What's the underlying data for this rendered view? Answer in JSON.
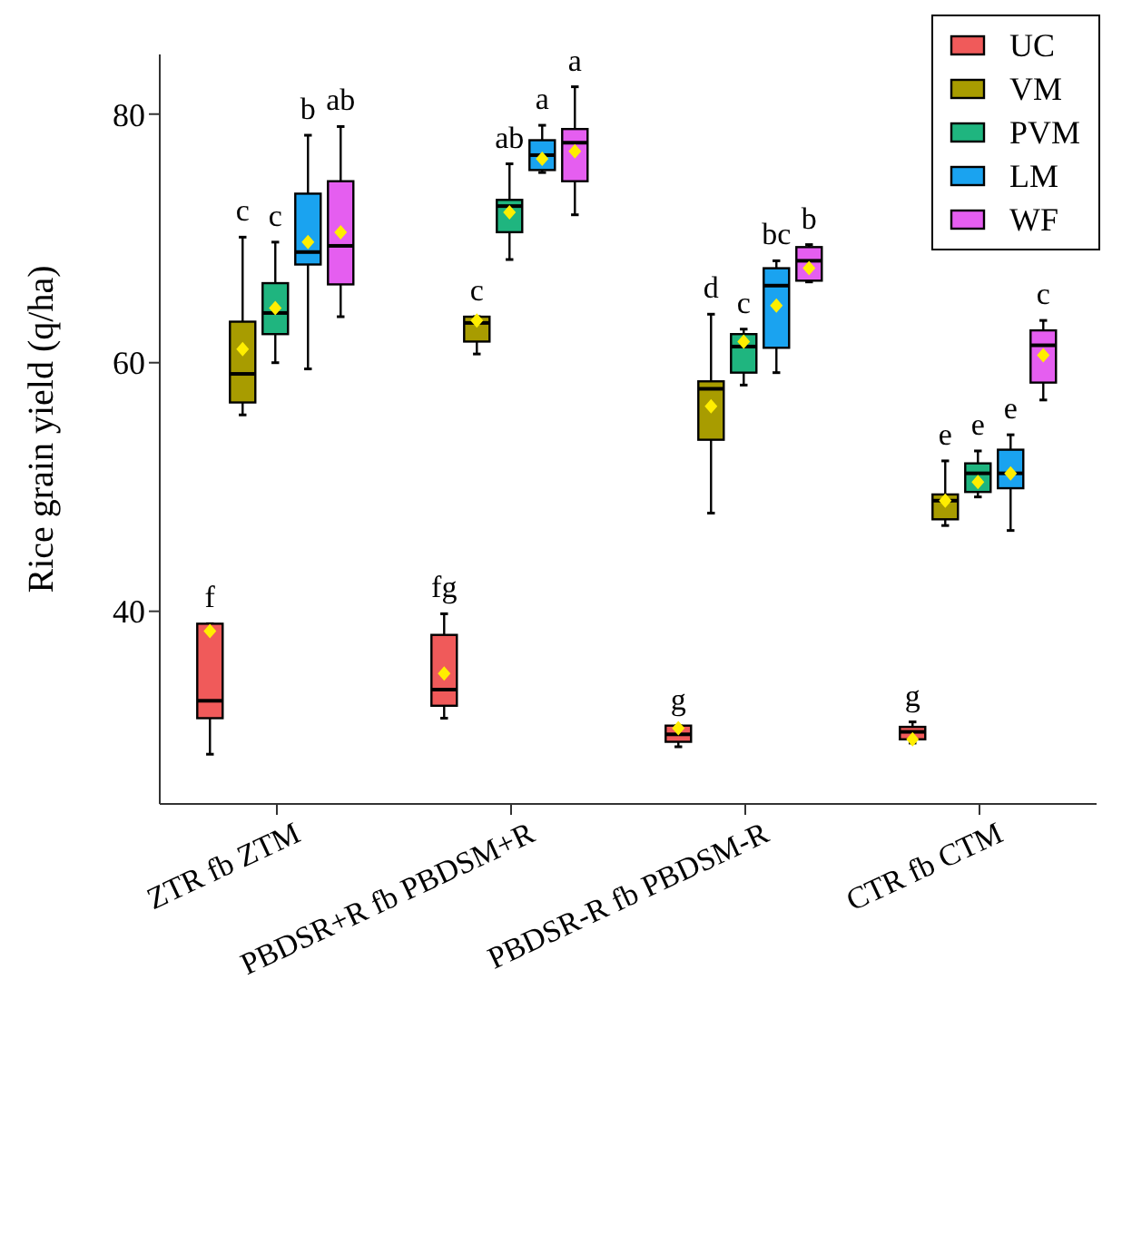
{
  "chart_data": {
    "type": "box",
    "ylabel": "Rice grain yield (q/ha)",
    "categories": [
      "ZTR fb ZTM",
      "PBDSR+R fb PBDSM+R",
      "PBDSR-R fb PBDSM-R",
      "CTR fb CTM"
    ],
    "ylim": [
      24.5,
      84.8
    ],
    "yticks": [
      40,
      60,
      80
    ],
    "legend": "top right",
    "series": [
      {
        "name": "UC",
        "color": "#f05a5a",
        "value_labels": [
          "f",
          "fg",
          "g",
          "g"
        ],
        "boxes": [
          {
            "low": 28.5,
            "q1": 31.4,
            "median": 32.8,
            "q3": 39.0,
            "high": 39.0,
            "mean": 38.4
          },
          {
            "low": 31.4,
            "q1": 32.4,
            "median": 33.7,
            "q3": 38.1,
            "high": 39.8,
            "mean": 35.0
          },
          {
            "low": 29.1,
            "q1": 29.5,
            "median": 30.1,
            "q3": 30.8,
            "high": 30.8,
            "mean": 30.6
          },
          {
            "low": 29.4,
            "q1": 29.7,
            "median": 30.3,
            "q3": 30.7,
            "high": 31.1,
            "mean": 29.7
          }
        ]
      },
      {
        "name": "VM",
        "color": "#a89c00",
        "value_labels": [
          "c",
          "c",
          "d",
          "e"
        ],
        "boxes": [
          {
            "low": 55.8,
            "q1": 56.8,
            "median": 59.1,
            "q3": 63.3,
            "high": 70.1,
            "mean": 61.1
          },
          {
            "low": 60.7,
            "q1": 61.7,
            "median": 63.2,
            "q3": 63.7,
            "high": 63.7,
            "mean": 63.4
          },
          {
            "low": 47.9,
            "q1": 53.8,
            "median": 57.9,
            "q3": 58.5,
            "high": 63.9,
            "mean": 56.5
          },
          {
            "low": 46.9,
            "q1": 47.4,
            "median": 48.9,
            "q3": 49.4,
            "high": 52.1,
            "mean": 48.9
          }
        ]
      },
      {
        "name": "PVM",
        "color": "#1fb57f",
        "value_labels": [
          "c",
          "ab",
          "c",
          "e"
        ],
        "boxes": [
          {
            "low": 60.0,
            "q1": 62.3,
            "median": 64.0,
            "q3": 66.4,
            "high": 69.7,
            "mean": 64.4
          },
          {
            "low": 68.3,
            "q1": 70.5,
            "median": 72.6,
            "q3": 73.1,
            "high": 76.0,
            "mean": 72.1
          },
          {
            "low": 58.2,
            "q1": 59.2,
            "median": 61.3,
            "q3": 62.3,
            "high": 62.7,
            "mean": 61.7
          },
          {
            "low": 49.2,
            "q1": 49.6,
            "median": 51.1,
            "q3": 51.9,
            "high": 52.9,
            "mean": 50.4
          }
        ]
      },
      {
        "name": "LM",
        "color": "#1aa3f0",
        "value_labels": [
          "b",
          "a",
          "bc",
          "e"
        ],
        "boxes": [
          {
            "low": 59.5,
            "q1": 67.9,
            "median": 68.9,
            "q3": 73.6,
            "high": 78.3,
            "mean": 69.7
          },
          {
            "low": 75.3,
            "q1": 75.5,
            "median": 76.7,
            "q3": 77.9,
            "high": 79.1,
            "mean": 76.4
          },
          {
            "low": 59.2,
            "q1": 61.2,
            "median": 66.2,
            "q3": 67.6,
            "high": 68.2,
            "mean": 64.6
          },
          {
            "low": 46.5,
            "q1": 49.9,
            "median": 51.1,
            "q3": 53.0,
            "high": 54.2,
            "mean": 51.1
          }
        ]
      },
      {
        "name": "WF",
        "color": "#e55ef0",
        "value_labels": [
          "ab",
          "a",
          "b",
          "c"
        ],
        "boxes": [
          {
            "low": 63.7,
            "q1": 66.3,
            "median": 69.4,
            "q3": 74.6,
            "high": 79.0,
            "mean": 70.5
          },
          {
            "low": 71.9,
            "q1": 74.6,
            "median": 77.7,
            "q3": 78.8,
            "high": 82.2,
            "mean": 77.0
          },
          {
            "low": 66.5,
            "q1": 66.6,
            "median": 68.2,
            "q3": 69.3,
            "high": 69.5,
            "mean": 67.6
          },
          {
            "low": 57.0,
            "q1": 58.4,
            "median": 61.4,
            "q3": 62.6,
            "high": 63.4,
            "mean": 60.6
          }
        ]
      }
    ]
  }
}
